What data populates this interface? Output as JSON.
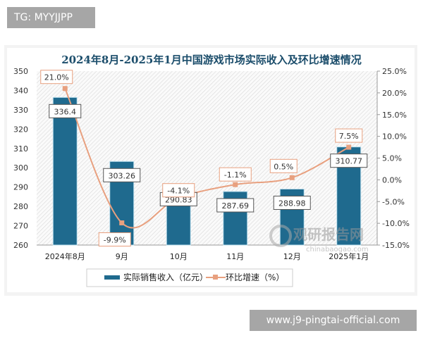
{
  "tag": "TG: MYYJJPP",
  "site": "www.j9-pingtai-official.com",
  "watermark": {
    "name": "观研报告网",
    "url": "chinabaogao.com"
  },
  "chart_data": {
    "type": "bar+line",
    "title": "2024年8月-2025年1月中国游戏市场实际收入及环比增速情况",
    "categories": [
      "2024年8月",
      "9月",
      "10月",
      "11月",
      "12月",
      "2025年1月"
    ],
    "series": [
      {
        "name": "实际销售收入（亿元）",
        "type": "bar",
        "axis": "left",
        "values": [
          336.4,
          303.26,
          290.83,
          287.69,
          288.98,
          310.77
        ],
        "labels": [
          "336.4",
          "303.26",
          "290.83",
          "287.69",
          "288.98",
          "310.77"
        ],
        "color": "#1f6a8e"
      },
      {
        "name": "环比增速（%）",
        "type": "line",
        "axis": "right",
        "values": [
          21.0,
          -9.9,
          -4.1,
          -1.1,
          0.5,
          7.5
        ],
        "labels": [
          "21.0%",
          "-9.9%",
          "-4.1%",
          "-1.1%",
          "0.5%",
          "7.5%"
        ],
        "color": "#e8a07f"
      }
    ],
    "y_left": {
      "range": [
        260,
        350
      ],
      "ticks": [
        "260",
        "270",
        "280",
        "290",
        "300",
        "310",
        "320",
        "330",
        "340",
        "350"
      ]
    },
    "y_right": {
      "range": [
        -15,
        25
      ],
      "ticks": [
        "-15.0%",
        "-10.0%",
        "-5.0%",
        "0.0%",
        "5.0%",
        "10.0%",
        "15.0%",
        "20.0%",
        "25.0%"
      ]
    },
    "legend": "bottom",
    "grid": false
  }
}
